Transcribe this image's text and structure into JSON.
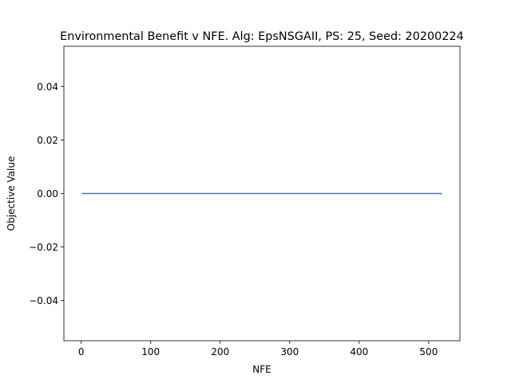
{
  "chart_data": {
    "type": "line",
    "title": "Environmental Benefit v NFE. Alg: EpsNSGAII, PS: 25, Seed: 20200224",
    "xlabel": "NFE",
    "ylabel": "Objective Value",
    "xlim": [
      -24.95,
      544.95
    ],
    "ylim": [
      -0.055,
      0.055
    ],
    "x_ticks": [
      0,
      100,
      200,
      300,
      400,
      500
    ],
    "x_tick_labels": [
      "0",
      "100",
      "200",
      "300",
      "400",
      "500"
    ],
    "y_ticks": [
      -0.04,
      -0.02,
      0.0,
      0.02,
      0.04
    ],
    "y_tick_labels": [
      "−0.04",
      "−0.02",
      "0.00",
      "0.02",
      "0.04"
    ],
    "grid": false,
    "series": [
      {
        "color": "#4c72b0",
        "x": [
          1,
          519
        ],
        "y": [
          0.0,
          0.0
        ]
      }
    ]
  }
}
